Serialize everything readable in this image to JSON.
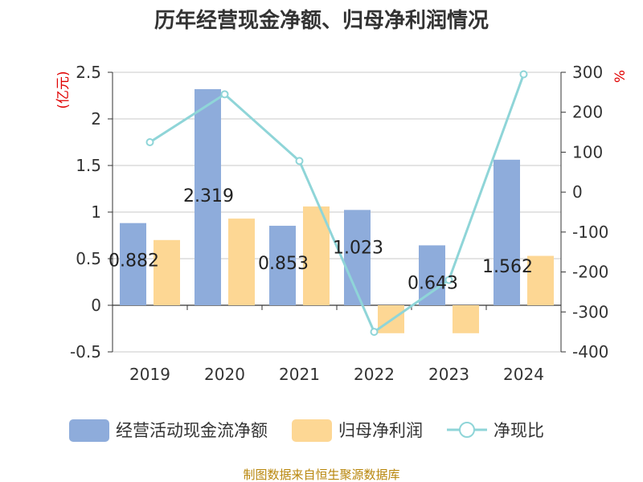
{
  "title": "历年经营现金净额、归母净利润情况",
  "source": "制图数据来自恒生聚源数据库",
  "chart_data": {
    "type": "bar",
    "categories": [
      "2019",
      "2020",
      "2021",
      "2022",
      "2023",
      "2024"
    ],
    "series": [
      {
        "name": "经营活动现金流净额",
        "kind": "bar",
        "axis": "left",
        "color": "#8eacdb",
        "values": [
          0.882,
          2.319,
          0.853,
          1.023,
          0.643,
          1.562
        ],
        "labels": [
          "0.882",
          "2.319",
          "0.853",
          "1.023",
          "0.643",
          "1.562"
        ]
      },
      {
        "name": "归母净利润",
        "kind": "bar",
        "axis": "left",
        "color": "#fdd794",
        "values": [
          0.7,
          0.93,
          1.06,
          -0.3,
          -0.3,
          0.53
        ]
      },
      {
        "name": "净现比",
        "kind": "line",
        "axis": "right",
        "color": "#8fd5d8",
        "values": [
          125,
          245,
          78,
          -350,
          -220,
          295
        ]
      }
    ],
    "left_axis": {
      "unit": "(亿元)",
      "ylim": [
        -0.5,
        2.5
      ],
      "ticks": [
        {
          "v": 2.5,
          "label": "2.5"
        },
        {
          "v": 2,
          "label": "2"
        },
        {
          "v": 1.5,
          "label": "1.5"
        },
        {
          "v": 1,
          "label": "1"
        },
        {
          "v": 0.5,
          "label": "0.5"
        },
        {
          "v": 0,
          "label": "0"
        },
        {
          "v": -0.5,
          "label": "-0.5"
        }
      ]
    },
    "right_axis": {
      "unit": "%",
      "ylim": [
        -400,
        300
      ],
      "ticks": [
        {
          "v": 300,
          "label": "300"
        },
        {
          "v": 200,
          "label": "200"
        },
        {
          "v": 100,
          "label": "100"
        },
        {
          "v": 0,
          "label": "0"
        },
        {
          "v": -100,
          "label": "-100"
        },
        {
          "v": -200,
          "label": "-200"
        },
        {
          "v": -300,
          "label": "-300"
        },
        {
          "v": -400,
          "label": "-400"
        }
      ]
    },
    "grid": true,
    "legend_position": "bottom"
  }
}
